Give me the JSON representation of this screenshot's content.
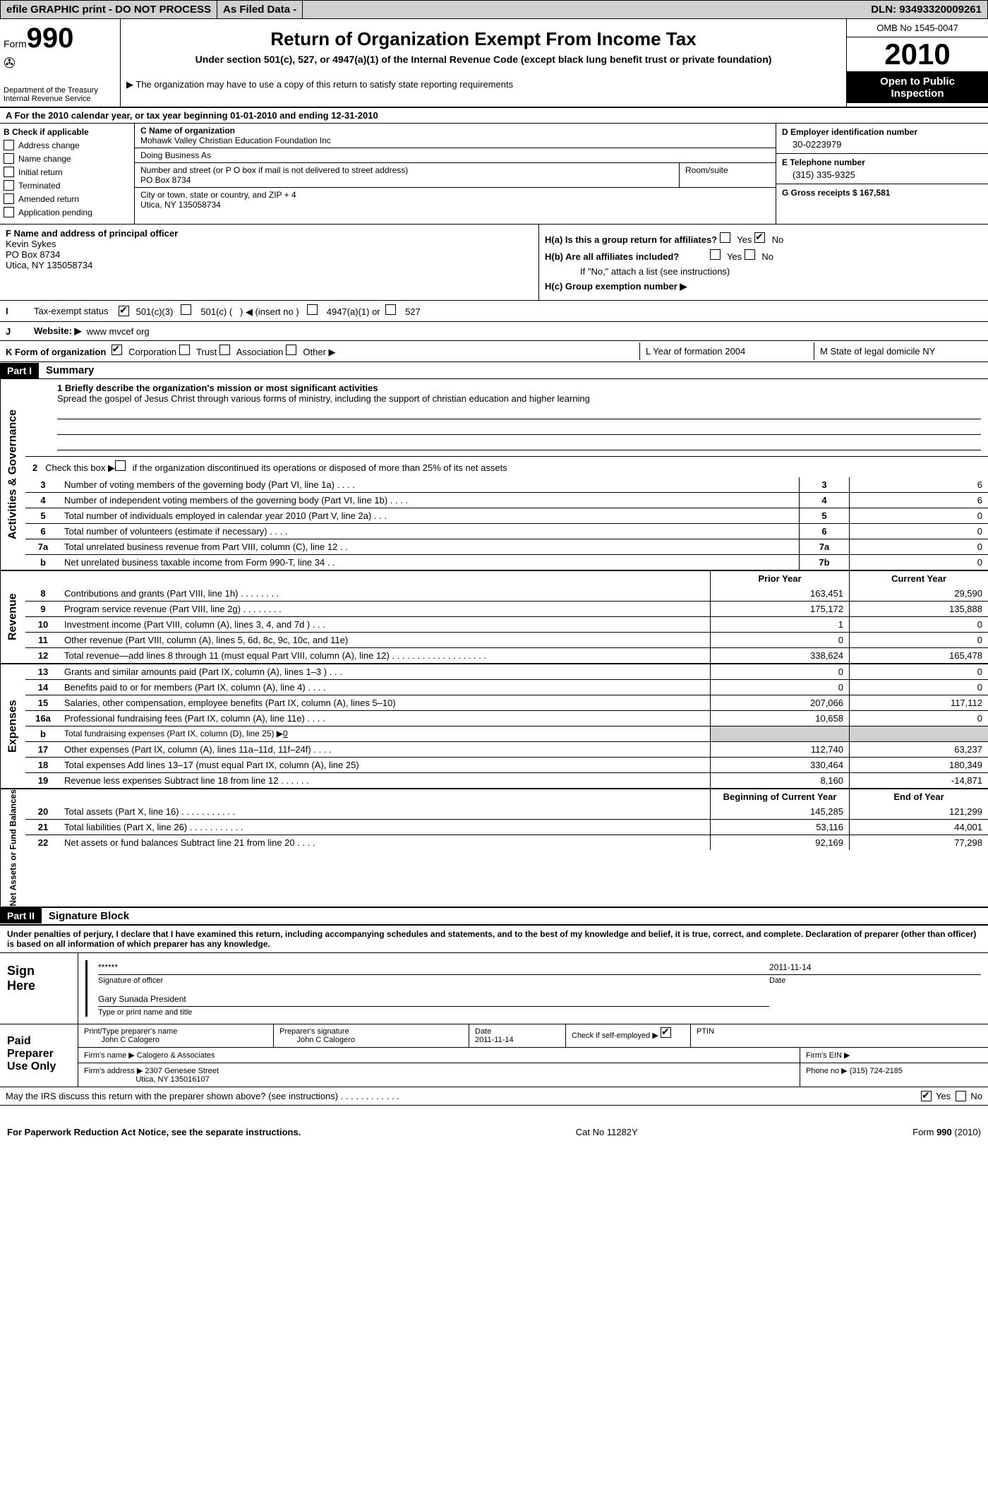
{
  "header": {
    "efile": "efile GRAPHIC print - DO NOT PROCESS",
    "asfiled": "As Filed Data -",
    "dln": "DLN: 93493320009261"
  },
  "form": {
    "form_label": "Form",
    "form_num": "990",
    "dept1": "Department of the Treasury",
    "dept2": "Internal Revenue Service",
    "title": "Return of Organization Exempt From Income Tax",
    "subtitle": "Under section 501(c), 527, or 4947(a)(1) of the Internal Revenue Code (except black lung benefit trust or private foundation)",
    "copy_note": "▶ The organization may have to use a copy of this return to satisfy state reporting requirements",
    "omb": "OMB No 1545-0047",
    "year": "2010",
    "inspect1": "Open to Public",
    "inspect2": "Inspection"
  },
  "row_a": "A  For the 2010 calendar year, or tax year beginning 01-01-2010    and ending 12-31-2010",
  "b": {
    "title": "B  Check if applicable",
    "items": [
      "Address change",
      "Name change",
      "Initial return",
      "Terminated",
      "Amended return",
      "Application pending"
    ]
  },
  "c": {
    "name_label": "C Name of organization",
    "name": "Mohawk Valley Christian Education Foundation Inc",
    "dba_label": "Doing Business As",
    "street_label": "Number and street (or P O  box if mail is not delivered to street address)",
    "street": "PO Box 8734",
    "room_label": "Room/suite",
    "city_label": "City or town, state or country, and ZIP + 4",
    "city": "Utica, NY  135058734"
  },
  "d": {
    "label": "D Employer identification number",
    "val": "30-0223979"
  },
  "e": {
    "label": "E Telephone number",
    "val": "(315) 335-9325"
  },
  "g": {
    "label": "G Gross receipts $ 167,581"
  },
  "f": {
    "label": "F  Name and address of principal officer",
    "name": "Kevin Sykes",
    "addr1": "PO Box 8734",
    "addr2": "Utica, NY  135058734"
  },
  "h": {
    "a": "H(a)  Is this a group return for affiliates?",
    "b": "H(b)  Are all affiliates included?",
    "b_note": "If \"No,\" attach a list  (see instructions)",
    "c": "H(c)   Group exemption number ▶"
  },
  "i": {
    "label": "I",
    "text": "Tax-exempt status",
    "opts": "501(c)(3)        501(c) (   ) ◀ (insert no )        4947(a)(1) or        527"
  },
  "j": {
    "label": "J",
    "text": "Website: ▶",
    "val": "www mvcef org"
  },
  "k": {
    "label": "K Form of organization",
    "opts": "Corporation       Trust       Association       Other ▶",
    "l_label": "L Year of formation  2004",
    "m_label": "M State of legal domicile  NY"
  },
  "part1": {
    "header": "Part I",
    "title": "Summary",
    "mission_label": "1    Briefly describe the organization's mission or most significant activities",
    "mission": "Spread the gospel of Jesus Christ through various forms of ministry, including the support of christian education and higher learning",
    "line2": "2   Check this box ▶       if the organization discontinued its operations or disposed of more than 25% of its net assets"
  },
  "governance": [
    {
      "n": "3",
      "d": "Number of voting members of the governing body (Part VI, line 1a)   .   .   .   .",
      "b": "3",
      "v": "6"
    },
    {
      "n": "4",
      "d": "Number of independent voting members of the governing body (Part VI, line 1b)   .   .   .   .",
      "b": "4",
      "v": "6"
    },
    {
      "n": "5",
      "d": "Total number of individuals employed in calendar year 2010 (Part V, line 2a)   .   .   .",
      "b": "5",
      "v": "0"
    },
    {
      "n": "6",
      "d": "Total number of volunteers (estimate if necessary)   .   .   .   .",
      "b": "6",
      "v": "0"
    },
    {
      "n": "7a",
      "d": "Total unrelated business revenue from Part VIII, column (C), line 12   .   .",
      "b": "7a",
      "v": "0"
    },
    {
      "n": "b",
      "d": "Net unrelated business taxable income from Form 990-T, line 34   .   .",
      "b": "7b",
      "v": "0"
    }
  ],
  "revenue_header": {
    "prior": "Prior Year",
    "current": "Current Year"
  },
  "revenue": [
    {
      "n": "8",
      "d": "Contributions and grants (Part VIII, line 1h)   .   .   .   .   .   .   .   .",
      "p": "163,451",
      "c": "29,590"
    },
    {
      "n": "9",
      "d": "Program service revenue (Part VIII, line 2g)   .   .   .   .   .   .   .   .",
      "p": "175,172",
      "c": "135,888"
    },
    {
      "n": "10",
      "d": "Investment income (Part VIII, column (A), lines 3, 4, and 7d )   .   .   .",
      "p": "1",
      "c": "0"
    },
    {
      "n": "11",
      "d": "Other revenue (Part VIII, column (A), lines 5, 6d, 8c, 9c, 10c, and 11e)",
      "p": "0",
      "c": "0"
    },
    {
      "n": "12",
      "d": "Total revenue—add lines 8 through 11 (must equal Part VIII, column (A), line 12)  .   .   .   .   .   .   .   .   .   .   .   .   .   .   .   .   .   .   .",
      "p": "338,624",
      "c": "165,478"
    }
  ],
  "expenses": [
    {
      "n": "13",
      "d": "Grants and similar amounts paid (Part IX, column (A), lines 1–3 )   .   .   .",
      "p": "0",
      "c": "0"
    },
    {
      "n": "14",
      "d": "Benefits paid to or for members (Part IX, column (A), line 4)   .   .   .   .",
      "p": "0",
      "c": "0"
    },
    {
      "n": "15",
      "d": "Salaries, other compensation, employee benefits (Part IX, column (A), lines 5–10)",
      "p": "207,066",
      "c": "117,112"
    },
    {
      "n": "16a",
      "d": "Professional fundraising fees (Part IX, column (A), line 11e)   .   .   .   .",
      "p": "10,658",
      "c": "0"
    },
    {
      "n": "b",
      "d": "Total fundraising expenses (Part IX, column (D), line 25) ▶",
      "p": "",
      "c": "",
      "special": "0"
    },
    {
      "n": "17",
      "d": "Other expenses (Part IX, column (A), lines 11a–11d, 11f–24f)   .   .   .   .",
      "p": "112,740",
      "c": "63,237"
    },
    {
      "n": "18",
      "d": "Total expenses  Add lines 13–17 (must equal Part IX, column (A), line 25)",
      "p": "330,464",
      "c": "180,349"
    },
    {
      "n": "19",
      "d": "Revenue less expenses  Subtract line 18 from line 12   .   .   .   .   .   .",
      "p": "8,160",
      "c": "-14,871"
    }
  ],
  "netassets_header": {
    "beg": "Beginning of Current Year",
    "end": "End of Year"
  },
  "netassets": [
    {
      "n": "20",
      "d": "Total assets (Part X, line 16)   .   .   .   .   .   .   .   .   .   .   .",
      "p": "145,285",
      "c": "121,299"
    },
    {
      "n": "21",
      "d": "Total liabilities (Part X, line 26)   .   .   .   .   .   .   .   .   .   .   .",
      "p": "53,116",
      "c": "44,001"
    },
    {
      "n": "22",
      "d": "Net assets or fund balances  Subtract line 21 from line 20   .   .   .   .",
      "p": "92,169",
      "c": "77,298"
    }
  ],
  "part2": {
    "header": "Part II",
    "title": "Signature Block",
    "perjury": "Under penalties of perjury, I declare that I have examined this return, including accompanying schedules and statements, and to the best of my knowledge and belief, it is true, correct, and complete. Declaration of preparer (other than officer) is based on all information of which preparer has any knowledge."
  },
  "sign": {
    "label": "Sign Here",
    "stars": "******",
    "sig_of_officer": "Signature of officer",
    "date": "2011-11-14",
    "name": "Gary Sunada President",
    "name_label": "Type or print name and title"
  },
  "paid": {
    "label": "Paid Preparer Use Only",
    "pt_label": "Print/Type preparer's name",
    "pt_name": "John C Calogero",
    "sig_label": "Preparer's signature",
    "sig_name": "John C Calogero",
    "date_label": "Date",
    "date": "2011-11-14",
    "self_label": "Check if self-employed ▶",
    "ptin": "PTIN",
    "firm_name_label": "Firm's name  ▶",
    "firm_name": "Calogero & Associates",
    "ein_label": "Firm's EIN  ▶",
    "firm_addr_label": "Firm's address ▶",
    "firm_addr": "2307 Genesee Street",
    "firm_city": "Utica, NY  135016107",
    "phone_label": "Phone no  ▶",
    "phone": "(315) 724-2185",
    "discuss": "May the IRS discuss this return with the preparer shown above? (see instructions)   .   .   .   .   .   .   .   .   .   .   .   ."
  },
  "footer": {
    "left": "For Paperwork Reduction Act Notice, see the separate instructions.",
    "mid": "Cat No 11282Y",
    "right": "Form 990 (2010)"
  },
  "vtabs": {
    "gov": "Activities & Governance",
    "rev": "Revenue",
    "exp": "Expenses",
    "net": "Net Assets or Fund Balances"
  }
}
